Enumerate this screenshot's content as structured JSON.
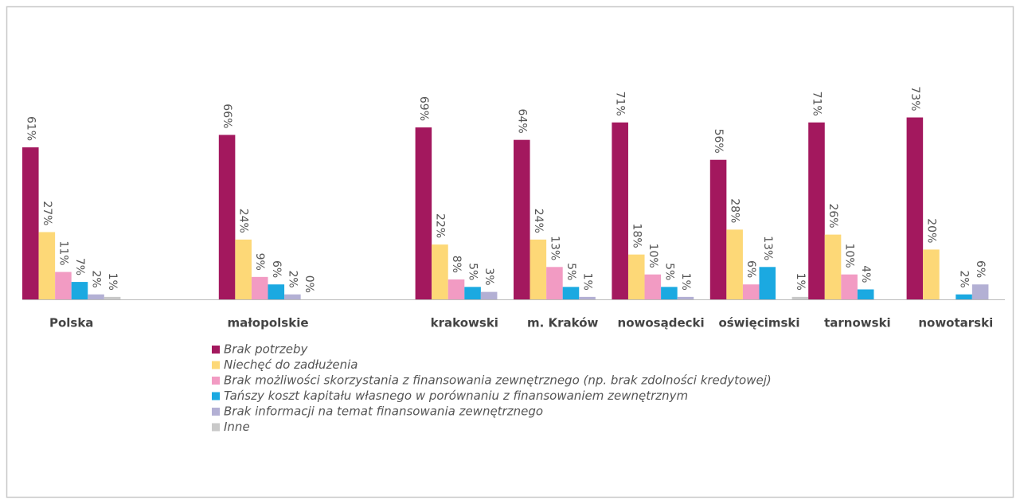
{
  "chart_data": {
    "type": "bar",
    "categories": [
      "Polska",
      "małopolskie",
      "krakowski",
      "m. Kraków",
      "nowosądecki",
      "oświęcimski",
      "tarnowski",
      "nowotarski"
    ],
    "series": [
      {
        "name": "Brak potrzeby",
        "color": "#a3185e",
        "values": [
          61,
          66,
          69,
          64,
          71,
          56,
          71,
          73
        ],
        "value_labels": [
          "61%",
          "66%",
          "69%",
          "64%",
          "71%",
          "56%",
          "71%",
          "73%"
        ]
      },
      {
        "name": "Niechęć do zadłużenia",
        "color": "#fdd877",
        "values": [
          27,
          24,
          22,
          24,
          18,
          28,
          26,
          20
        ],
        "value_labels": [
          "27%",
          "24%",
          "22%",
          "24%",
          "18%",
          "28%",
          "26%",
          "20%"
        ]
      },
      {
        "name": "Brak możliwości skorzystania z finansowania zewnętrznego (np. brak zdolności kredytowej)",
        "color": "#f29bc3",
        "values": [
          11,
          9,
          8,
          13,
          10,
          6,
          10,
          null
        ],
        "value_labels": [
          "11%",
          "9%",
          "8%",
          "13%",
          "10%",
          "6%",
          "10%",
          null
        ]
      },
      {
        "name": "Tańszy koszt kapitału własnego w porównaniu z finansowaniem zewnętrznym",
        "color": "#1ba9e1",
        "values": [
          7,
          6,
          5,
          5,
          5,
          13,
          4,
          2
        ],
        "value_labels": [
          "7%",
          "6%",
          "5%",
          "5%",
          "5%",
          "13%",
          "4%",
          "2%"
        ]
      },
      {
        "name": "Brak informacji na temat finansowania zewnętrznego",
        "color": "#b3b0d4",
        "values": [
          2,
          2,
          3,
          1,
          1,
          null,
          null,
          6
        ],
        "value_labels": [
          "2%",
          "2%",
          "3%",
          "1%",
          "1%",
          null,
          null,
          "6%"
        ]
      },
      {
        "name": "Inne",
        "color": "#c9c9c9",
        "values": [
          1,
          0,
          null,
          null,
          null,
          1,
          null,
          null
        ],
        "value_labels": [
          "1%",
          "0%",
          null,
          null,
          null,
          "1%",
          null,
          null
        ]
      }
    ]
  }
}
